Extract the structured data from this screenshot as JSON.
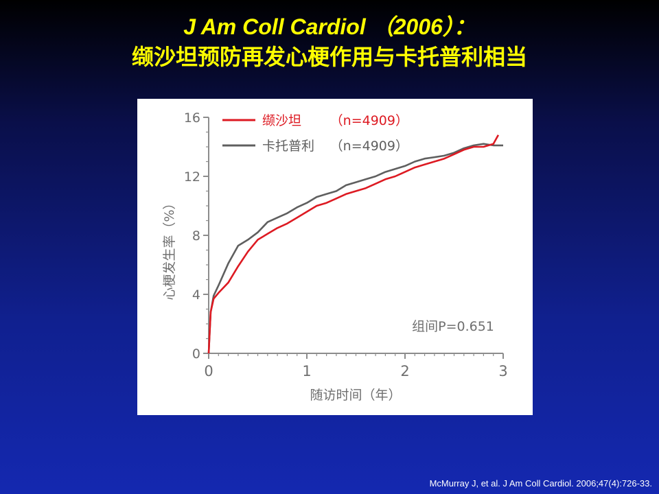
{
  "title": {
    "line1": "J Am Coll Cardiol （2006）：",
    "line2": "缬沙坦预防再发心梗作用与卡托普利相当"
  },
  "citation": "McMurray J, et al. J Am Coll Cardiol. 2006;47(4):726-33.",
  "colors": {
    "valsartan": "#dd1a22",
    "captopril": "#5f5f5f",
    "axis": "#888888",
    "text": "#6f6f6f"
  },
  "chart_data": {
    "type": "line",
    "xlabel": "随访时间（年）",
    "ylabel": "心梗发生率（%）",
    "xlim": [
      0,
      3
    ],
    "ylim": [
      0,
      16
    ],
    "xticks": [
      0,
      1,
      2,
      3
    ],
    "yticks": [
      0,
      4,
      8,
      12,
      16
    ],
    "legend_position": "top-left",
    "annotation": "组间P=0.651",
    "series": [
      {
        "name": "缬沙坦",
        "label_n": "（n=4909）",
        "color": "#dd1a22",
        "x": [
          0,
          0.02,
          0.05,
          0.1,
          0.2,
          0.3,
          0.4,
          0.5,
          0.6,
          0.7,
          0.8,
          0.9,
          1.0,
          1.1,
          1.2,
          1.3,
          1.4,
          1.5,
          1.6,
          1.7,
          1.8,
          1.9,
          2.0,
          2.1,
          2.2,
          2.3,
          2.4,
          2.5,
          2.6,
          2.7,
          2.8,
          2.9,
          2.95
        ],
        "y": [
          0,
          2.8,
          3.7,
          4.1,
          4.8,
          5.9,
          6.9,
          7.7,
          8.1,
          8.5,
          8.8,
          9.2,
          9.6,
          10.0,
          10.2,
          10.5,
          10.8,
          11.0,
          11.2,
          11.5,
          11.8,
          12.0,
          12.3,
          12.6,
          12.8,
          13.0,
          13.2,
          13.5,
          13.8,
          14.0,
          14.0,
          14.2,
          14.8
        ]
      },
      {
        "name": "卡托普利",
        "label_n": "（n=4909）",
        "color": "#5f5f5f",
        "x": [
          0,
          0.02,
          0.05,
          0.1,
          0.2,
          0.3,
          0.4,
          0.5,
          0.6,
          0.7,
          0.8,
          0.9,
          1.0,
          1.1,
          1.2,
          1.3,
          1.4,
          1.5,
          1.6,
          1.7,
          1.8,
          1.9,
          2.0,
          2.1,
          2.2,
          2.3,
          2.4,
          2.5,
          2.6,
          2.7,
          2.8,
          2.9,
          3.0
        ],
        "y": [
          0,
          2.8,
          3.9,
          4.6,
          6.1,
          7.3,
          7.7,
          8.2,
          8.9,
          9.2,
          9.5,
          9.9,
          10.2,
          10.6,
          10.8,
          11.0,
          11.4,
          11.6,
          11.8,
          12.0,
          12.3,
          12.5,
          12.7,
          13.0,
          13.2,
          13.3,
          13.4,
          13.6,
          13.9,
          14.1,
          14.2,
          14.1,
          14.1
        ]
      }
    ]
  }
}
